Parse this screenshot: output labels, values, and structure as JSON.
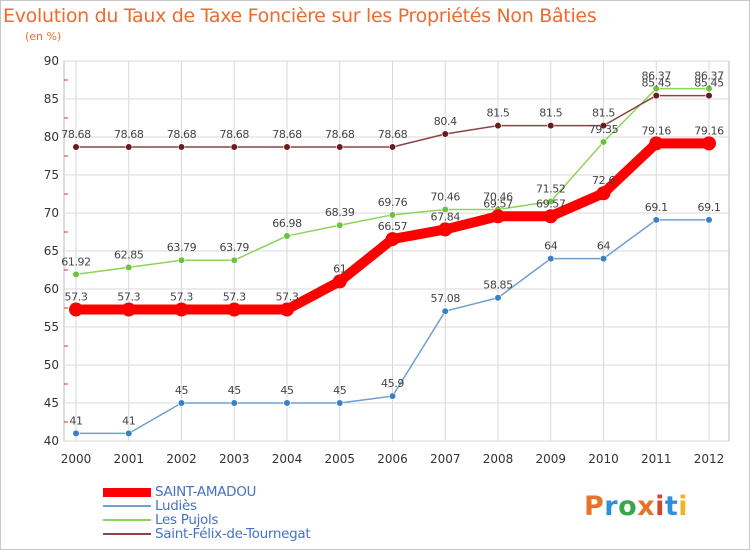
{
  "header": {
    "title": "Evolution du Taux de Taxe Foncière sur les Propriétés Non Bâties",
    "unit": "(en %)"
  },
  "logo": {
    "text": "Proxiti",
    "colors": [
      "#e8732a",
      "#2f8fd8",
      "#3aa64a",
      "#e8732a",
      "#d6442e",
      "#2f8fd8",
      "#f0b323"
    ]
  },
  "chart_data": {
    "type": "line",
    "title": "Evolution du Taux de Taxe Foncière sur les Propriétés Non Bâties",
    "ylabel": "(en %)",
    "xlabel": "",
    "x": [
      "2000",
      "2001",
      "2002",
      "2003",
      "2004",
      "2005",
      "2006",
      "2007",
      "2008",
      "2009",
      "2010",
      "2011",
      "2012"
    ],
    "ylim": [
      40,
      90
    ],
    "yticks": [
      40,
      45,
      50,
      55,
      60,
      65,
      70,
      75,
      80,
      85,
      90
    ],
    "grid": true,
    "legend_position": "bottom-left",
    "series": [
      {
        "name": "SAINT-AMADOU",
        "color": "#ff0000",
        "marker_color": "#ff0000",
        "values": [
          57.3,
          57.3,
          57.3,
          57.3,
          57.3,
          61,
          66.57,
          67.84,
          69.57,
          69.57,
          72.6,
          79.16,
          79.16
        ],
        "labels": [
          "57.3",
          "57.3",
          "57.3",
          "57.3",
          "57.3",
          "61",
          "66.57",
          "67.84",
          "69.57",
          "69.57",
          "72.6",
          "79.16",
          "79.16"
        ]
      },
      {
        "name": "Ludiès",
        "color": "#6fa0d0",
        "marker_color": "#3b7fc4",
        "values": [
          41,
          41,
          45,
          45,
          45,
          45,
          45.9,
          57.08,
          58.85,
          64,
          64,
          69.1,
          69.1
        ],
        "labels": [
          "41",
          "41",
          "45",
          "45",
          "45",
          "45",
          "45.9",
          "57.08",
          "58.85",
          "64",
          "64",
          "69.1",
          "69.1"
        ]
      },
      {
        "name": "Les Pujols",
        "color": "#8ed45a",
        "marker_color": "#6cc23a",
        "values": [
          61.92,
          62.85,
          63.79,
          63.79,
          66.98,
          68.39,
          69.76,
          70.46,
          70.46,
          71.52,
          79.35,
          86.37,
          86.37
        ],
        "labels": [
          "61.92",
          "62.85",
          "63.79",
          "63.79",
          "66.98",
          "68.39",
          "69.76",
          "70.46",
          "70.46",
          "71.52",
          "79.35",
          "86.37",
          "86.37"
        ]
      },
      {
        "name": "Saint-Félix-de-Tournegat",
        "color": "#8a4444",
        "marker_color": "#6a1c1c",
        "values": [
          78.68,
          78.68,
          78.68,
          78.68,
          78.68,
          78.68,
          78.68,
          80.4,
          81.5,
          81.5,
          81.5,
          85.45,
          85.45
        ],
        "labels": [
          "78.68",
          "78.68",
          "78.68",
          "78.68",
          "78.68",
          "78.68",
          "78.68",
          "80.4",
          "81.5",
          "81.5",
          "81.5",
          "85.45",
          "85.45"
        ]
      }
    ]
  }
}
